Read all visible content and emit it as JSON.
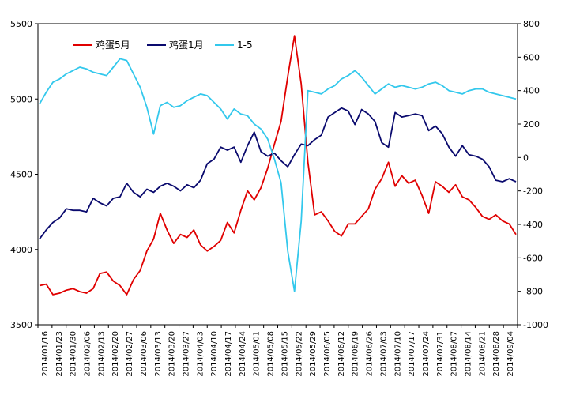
{
  "chart_data": {
    "type": "line",
    "title": "",
    "xlabel": "",
    "ylabel": "",
    "x_tick_labels": [
      "2014/01/16",
      "2014/01/23",
      "2014/01/30",
      "2014/02/06",
      "2014/02/13",
      "2014/02/20",
      "2014/02/27",
      "2014/03/06",
      "2014/03/13",
      "2014/03/20",
      "2014/03/27",
      "2014/04/03",
      "2014/04/10",
      "2014/04/17",
      "2014/04/24",
      "2014/05/01",
      "2014/05/08",
      "2014/05/15",
      "2014/05/22",
      "2014/05/29",
      "2014/06/05",
      "2014/06/12",
      "2014/06/19",
      "2014/06/26",
      "2014/07/03",
      "2014/07/10",
      "2014/07/17",
      "2014/07/24",
      "2014/07/31",
      "2014/08/07",
      "2014/08/14",
      "2014/08/21",
      "2014/08/28",
      "2014/09/04"
    ],
    "y_left": {
      "ylim": [
        3500,
        5500
      ],
      "ticks": [
        3500,
        4000,
        4500,
        5000,
        5500
      ]
    },
    "y_right": {
      "ylim": [
        -1000,
        800
      ],
      "ticks": [
        -1000,
        -800,
        -600,
        -400,
        -200,
        0,
        200,
        400,
        600,
        800
      ]
    },
    "legend": {
      "position": "top-left",
      "orientation": "horizontal"
    },
    "series": [
      {
        "name": "鸡蛋5月",
        "color": "#e00000",
        "axis": "left",
        "values": [
          3760,
          3770,
          3700,
          3710,
          3730,
          3740,
          3720,
          3710,
          3740,
          3840,
          3850,
          3790,
          3760,
          3700,
          3800,
          3860,
          3990,
          4070,
          4240,
          4130,
          4040,
          4100,
          4080,
          4130,
          4030,
          3990,
          4020,
          4060,
          4180,
          4110,
          4260,
          4390,
          4330,
          4410,
          4540,
          4700,
          4850,
          5150,
          5420,
          5100,
          4580,
          4230,
          4250,
          4190,
          4120,
          4090,
          4170,
          4170,
          4220,
          4270,
          4400,
          4470,
          4580,
          4420,
          4490,
          4440,
          4460,
          4360,
          4240,
          4450,
          4420,
          4380,
          4430,
          4350,
          4330,
          4280,
          4220,
          4200,
          4230,
          4190,
          4170,
          4100
        ]
      },
      {
        "name": "鸡蛋1月",
        "color": "#0a0a6e",
        "axis": "left",
        "values": [
          4070,
          4130,
          4180,
          4210,
          4270,
          4260,
          4260,
          4250,
          4340,
          4310,
          4290,
          4340,
          4350,
          4440,
          4380,
          4350,
          4400,
          4380,
          4420,
          4440,
          4420,
          4390,
          4430,
          4410,
          4460,
          4570,
          4600,
          4680,
          4660,
          4680,
          4580,
          4690,
          4780,
          4650,
          4620,
          4640,
          4590,
          4550,
          4630,
          4700,
          4690,
          4730,
          4760,
          4880,
          4910,
          4940,
          4920,
          4830,
          4930,
          4900,
          4850,
          4710,
          4680,
          4910,
          4880,
          4890,
          4900,
          4890,
          4790,
          4820,
          4770,
          4680,
          4620,
          4690,
          4630,
          4620,
          4600,
          4550,
          4460,
          4450,
          4470,
          4450
        ]
      },
      {
        "name": "1-5",
        "color": "#33c8ec",
        "axis": "right",
        "values": [
          320,
          390,
          450,
          470,
          500,
          520,
          540,
          530,
          510,
          500,
          490,
          540,
          590,
          580,
          500,
          420,
          300,
          140,
          310,
          330,
          300,
          310,
          340,
          360,
          380,
          370,
          330,
          290,
          230,
          290,
          260,
          250,
          200,
          170,
          110,
          -10,
          -150,
          -560,
          -800,
          -380,
          400,
          390,
          380,
          410,
          430,
          470,
          490,
          520,
          480,
          430,
          380,
          410,
          440,
          420,
          430,
          420,
          410,
          420,
          440,
          450,
          430,
          400,
          390,
          380,
          400,
          410,
          410,
          390,
          380,
          370,
          360,
          350
        ]
      }
    ]
  }
}
